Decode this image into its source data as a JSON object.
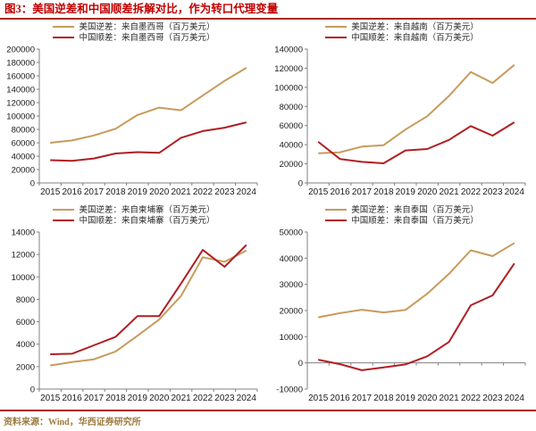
{
  "title": "图3：美国逆差和中国顺差拆解对比，作为转口代理变量",
  "source": "资料来源：Wind，华西证券研究所",
  "colors": {
    "title_red": "#C00000",
    "rule_red": "#A8281F",
    "us_line": "#C89B5C",
    "cn_line": "#B01E23",
    "axis": "#808080",
    "source_text": "#9C7A3F"
  },
  "chart_data": [
    {
      "type": "line",
      "name": "mexico",
      "x": [
        "2015",
        "2016",
        "2017",
        "2018",
        "2019",
        "2020",
        "2021",
        "2022",
        "2023",
        "2024"
      ],
      "ylim": [
        0,
        200000
      ],
      "ystep": 20000,
      "grid": false,
      "legend_position": "top",
      "series": [
        {
          "name": "美国逆差：来自墨西哥（百万美元）",
          "color_key": "us_line",
          "values": [
            60000,
            63500,
            71000,
            81000,
            101500,
            112500,
            108500,
            130500,
            152500,
            172000
          ]
        },
        {
          "name": "中国顺差：来自墨西哥（百万美元）",
          "color_key": "cn_line",
          "values": [
            34000,
            33000,
            36500,
            44000,
            46000,
            45000,
            67500,
            77500,
            82500,
            90500
          ]
        }
      ]
    },
    {
      "type": "line",
      "name": "vietnam",
      "x": [
        "2015",
        "2016",
        "2017",
        "2018",
        "2019",
        "2020",
        "2021",
        "2022",
        "2023",
        "2024"
      ],
      "ylim": [
        0,
        140000
      ],
      "ystep": 20000,
      "grid": false,
      "legend_position": "top",
      "series": [
        {
          "name": "美国逆差：来自越南（百万美元）",
          "color_key": "us_line",
          "values": [
            31000,
            32000,
            38000,
            39500,
            55800,
            69700,
            91000,
            116000,
            104500,
            123500
          ]
        },
        {
          "name": "中国顺差：来自越南（百万美元）",
          "color_key": "cn_line",
          "values": [
            43000,
            25000,
            22000,
            20500,
            34000,
            35500,
            45000,
            59500,
            49500,
            63500
          ]
        }
      ]
    },
    {
      "type": "line",
      "name": "cambodia",
      "x": [
        "2015",
        "2016",
        "2017",
        "2018",
        "2019",
        "2020",
        "2021",
        "2022",
        "2023",
        "2024"
      ],
      "ylim": [
        0,
        14000
      ],
      "ystep": 2000,
      "grid": false,
      "legend_position": "top",
      "series": [
        {
          "name": "美国逆差：来自柬埔寨（百万美元）",
          "color_key": "us_line",
          "values": [
            2100,
            2400,
            2650,
            3350,
            4750,
            6200,
            8300,
            11750,
            11350,
            12350
          ]
        },
        {
          "name": "中国顺差：来自柬埔寨（百万美元）",
          "color_key": "cn_line",
          "values": [
            3100,
            3150,
            3900,
            4650,
            6500,
            6500,
            9400,
            12400,
            10900,
            12850
          ]
        }
      ]
    },
    {
      "type": "line",
      "name": "thailand",
      "x": [
        "2015",
        "2016",
        "2017",
        "2018",
        "2019",
        "2020",
        "2021",
        "2022",
        "2023",
        "2024"
      ],
      "ylim": [
        -10000,
        50000
      ],
      "ystep": 10000,
      "grid": false,
      "legend_position": "top",
      "series": [
        {
          "name": "美国逆差：来自泰国（百万美元）",
          "color_key": "us_line",
          "values": [
            17400,
            19000,
            20300,
            19300,
            20200,
            26400,
            34000,
            43000,
            40800,
            45800
          ]
        },
        {
          "name": "中国顺差：来自泰国（百万美元）",
          "color_key": "cn_line",
          "values": [
            1200,
            -500,
            -2800,
            -1700,
            -600,
            2500,
            8000,
            22000,
            25800,
            38000
          ]
        }
      ]
    }
  ]
}
